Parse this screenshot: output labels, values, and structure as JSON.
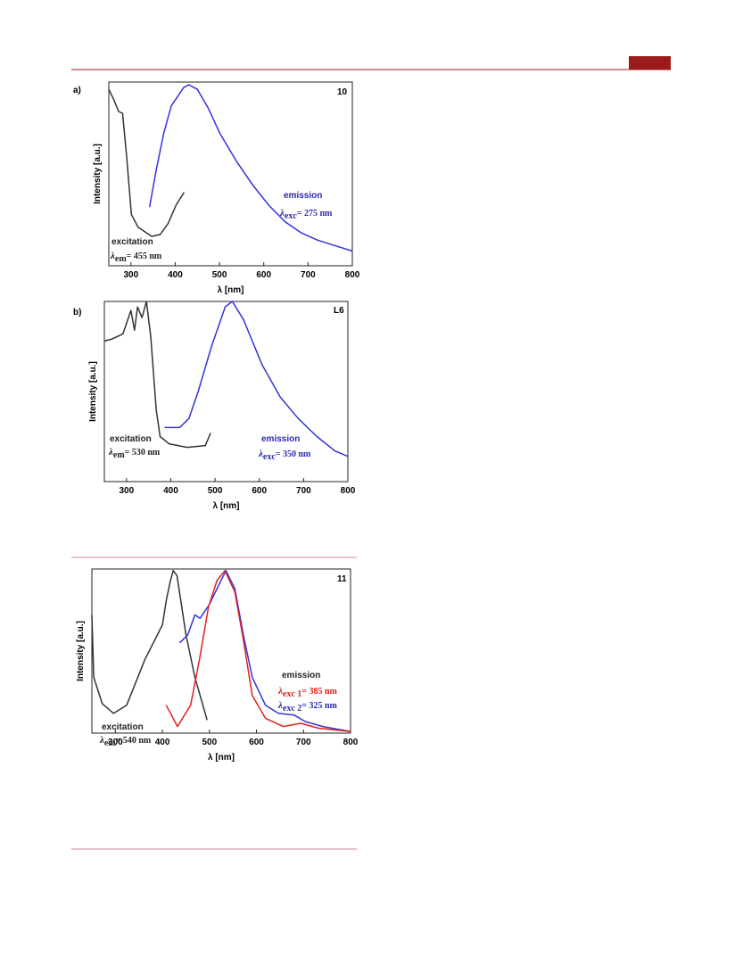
{
  "chart_data": [
    {
      "type": "line",
      "panel_label": "a)",
      "compound": "10",
      "ylabel": "Intensity [a.u.]",
      "xlabel": "λ [nm]",
      "xlim": [
        250,
        800
      ],
      "xticks": [
        300,
        400,
        500,
        600,
        700,
        800
      ],
      "ylim": [
        0,
        1
      ],
      "series": [
        {
          "color": "#333333",
          "x": [
            250,
            262,
            272,
            281,
            290,
            301,
            316,
            347,
            366,
            384,
            402,
            420
          ],
          "values": [
            0.96,
            0.9,
            0.84,
            0.83,
            0.6,
            0.28,
            0.21,
            0.16,
            0.17,
            0.23,
            0.33,
            0.4
          ]
        },
        {
          "color": "#3333dd",
          "x": [
            342,
            357,
            374,
            391,
            419,
            431,
            450,
            474,
            501,
            538,
            575,
            611,
            648,
            684,
            721,
            760,
            800
          ],
          "values": [
            0.32,
            0.52,
            0.72,
            0.87,
            0.97,
            0.985,
            0.96,
            0.86,
            0.72,
            0.57,
            0.44,
            0.33,
            0.24,
            0.18,
            0.14,
            0.11,
            0.08
          ]
        }
      ],
      "annotations": [
        {
          "text": "excitation",
          "color": "#222222"
        },
        {
          "symbol": "λ",
          "sub": "em",
          "text": "= 455 nm",
          "color": "#222222"
        },
        {
          "text": "emission",
          "color": "#2a2ab0"
        },
        {
          "symbol": "λ",
          "sub": "exc",
          "text": "= 275 nm",
          "color": "#2a2ab0"
        }
      ]
    },
    {
      "type": "line",
      "panel_label": "b)",
      "compound": "L6",
      "ylabel": "Intensity [a.u.]",
      "xlabel": "λ [nm]",
      "xlim": [
        250,
        800
      ],
      "xticks": [
        300,
        400,
        500,
        600,
        700,
        800
      ],
      "ylim": [
        0,
        1
      ],
      "series": [
        {
          "color": "#333333",
          "x": [
            250,
            266,
            292,
            310,
            318,
            325,
            335,
            345,
            355,
            367,
            376,
            396,
            437,
            478,
            490
          ],
          "values": [
            0.78,
            0.79,
            0.82,
            0.95,
            0.84,
            0.97,
            0.91,
            1.0,
            0.8,
            0.4,
            0.25,
            0.21,
            0.19,
            0.2,
            0.27
          ]
        },
        {
          "color": "#3333dd",
          "x": [
            386,
            420,
            441,
            462,
            492,
            523,
            539,
            564,
            606,
            647,
            688,
            730,
            771,
            800
          ],
          "values": [
            0.3,
            0.3,
            0.35,
            0.5,
            0.75,
            0.97,
            1.0,
            0.9,
            0.65,
            0.47,
            0.35,
            0.25,
            0.17,
            0.14
          ]
        }
      ],
      "annotations": [
        {
          "text": "excitation",
          "color": "#222222"
        },
        {
          "symbol": "λ",
          "sub": "em",
          "text": "= 530 nm",
          "color": "#222222"
        },
        {
          "text": "emission",
          "color": "#2a2ab0"
        },
        {
          "symbol": "λ",
          "sub": "exc",
          "text": "= 350 nm",
          "color": "#2a2ab0"
        }
      ]
    },
    {
      "type": "line",
      "compound": "11",
      "ylabel": "Intensity [a.u.]",
      "xlabel": "λ [nm]",
      "xlim": [
        250,
        800
      ],
      "xticks": [
        300,
        400,
        500,
        600,
        700,
        800
      ],
      "ylim": [
        0,
        1
      ],
      "series": [
        {
          "color": "#333333",
          "x": [
            250,
            254,
            272,
            296,
            324,
            363,
            400,
            409,
            417,
            423,
            431,
            450,
            469,
            495
          ],
          "values": [
            0.72,
            0.34,
            0.18,
            0.12,
            0.17,
            0.45,
            0.66,
            0.82,
            0.93,
            0.99,
            0.96,
            0.6,
            0.34,
            0.08
          ]
        },
        {
          "color": "#3333dd",
          "x": [
            437,
            454,
            469,
            480,
            499,
            516,
            535,
            554,
            572,
            591,
            619,
            647,
            680,
            704,
            741,
            800
          ],
          "values": [
            0.55,
            0.6,
            0.72,
            0.7,
            0.78,
            0.88,
            0.99,
            0.88,
            0.6,
            0.34,
            0.17,
            0.12,
            0.11,
            0.07,
            0.04,
            0.01
          ]
        },
        {
          "color": "#e02020",
          "x": [
            408,
            432,
            460,
            479,
            498,
            516,
            533,
            554,
            572,
            591,
            619,
            657,
            694,
            732,
            800
          ],
          "values": [
            0.17,
            0.04,
            0.17,
            0.45,
            0.77,
            0.93,
            0.99,
            0.86,
            0.57,
            0.23,
            0.09,
            0.04,
            0.06,
            0.03,
            0.01
          ]
        }
      ],
      "annotations": [
        {
          "text": "emission",
          "color": "#222222"
        },
        {
          "symbol": "λ",
          "sub": "exc 1",
          "text": "= 385 nm",
          "color": "#e02020"
        },
        {
          "symbol": "λ",
          "sub": "exc 2",
          "text": "= 325 nm",
          "color": "#2a2ab0"
        },
        {
          "text": "excitation",
          "color": "#222222"
        },
        {
          "symbol": "λ",
          "sub": "em",
          "text": "= 540 nm",
          "color": "#222222"
        }
      ]
    }
  ]
}
